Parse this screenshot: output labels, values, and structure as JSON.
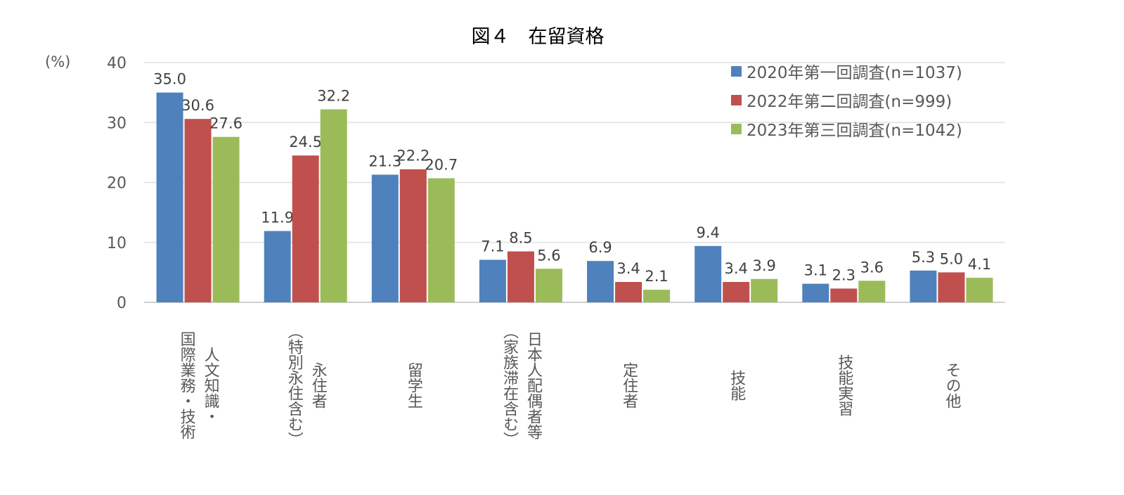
{
  "chart_data": {
    "type": "bar",
    "title": "図４　在留資格",
    "ylabel": "(%)",
    "ylim": [
      0,
      40
    ],
    "yticks": [
      0,
      10,
      20,
      30,
      40
    ],
    "grid": true,
    "legend_position": "top-right",
    "categories": [
      [
        "人文知識・",
        "国際業務・技術"
      ],
      [
        "永住者",
        "（特別永住含む）"
      ],
      [
        "留学生"
      ],
      [
        "日本人配偶者等",
        "（家族滞在含む）"
      ],
      [
        "定住者"
      ],
      [
        "技能"
      ],
      [
        "技能実習"
      ],
      [
        "その他"
      ]
    ],
    "series": [
      {
        "name": "2020年第一回調査(n=1037)",
        "color": "#4F81BD",
        "values": [
          35.0,
          11.9,
          21.3,
          7.1,
          6.9,
          9.4,
          3.1,
          5.3
        ]
      },
      {
        "name": "2022年第二回調査(n=999)",
        "color": "#C0504D",
        "values": [
          30.6,
          24.5,
          22.2,
          8.5,
          3.4,
          3.4,
          2.3,
          5.0
        ]
      },
      {
        "name": "2023年第三回調査(n=1042)",
        "color": "#9BBB59",
        "values": [
          27.6,
          32.2,
          20.7,
          5.6,
          2.1,
          3.9,
          3.6,
          4.1
        ]
      }
    ]
  }
}
